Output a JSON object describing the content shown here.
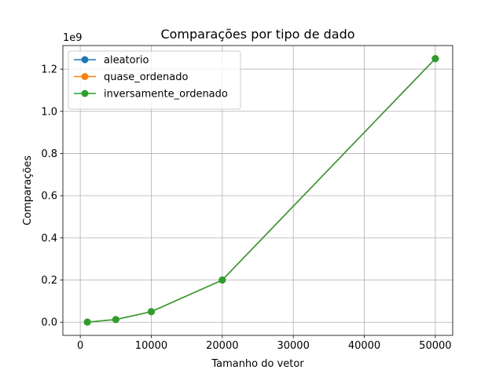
{
  "chart_data": {
    "type": "line",
    "title": "Comparações por tipo de dado",
    "xlabel": "Tamanho do vetor",
    "ylabel": "Comparações",
    "y_offset_label": "1e9",
    "x": [
      1000,
      5000,
      10000,
      20000,
      50000
    ],
    "xlim": [
      -2450,
      52450
    ],
    "ylim": [
      -62474975,
      1312009975
    ],
    "xticks": [
      0,
      10000,
      20000,
      30000,
      40000,
      50000
    ],
    "xtick_labels": [
      "0",
      "10000",
      "20000",
      "30000",
      "40000",
      "50000"
    ],
    "yticks": [
      0,
      200000000,
      400000000,
      600000000,
      800000000,
      1000000000,
      1200000000
    ],
    "ytick_labels": [
      "0.0",
      "0.2",
      "0.4",
      "0.6",
      "0.8",
      "1.0",
      "1.2"
    ],
    "grid": true,
    "legend_position": "upper-left",
    "series": [
      {
        "name": "aleatorio",
        "color": "#1f77b4",
        "marker": "circle",
        "values": [
          499500,
          12497500,
          49995000,
          199990000,
          1249975000
        ]
      },
      {
        "name": "quase_ordenado",
        "color": "#ff7f0e",
        "marker": "circle",
        "values": [
          499500,
          12497500,
          49995000,
          199990000,
          1249975000
        ]
      },
      {
        "name": "inversamente_ordenado",
        "color": "#2ca02c",
        "marker": "circle",
        "values": [
          499500,
          12497500,
          49995000,
          199990000,
          1249975000
        ]
      }
    ]
  }
}
